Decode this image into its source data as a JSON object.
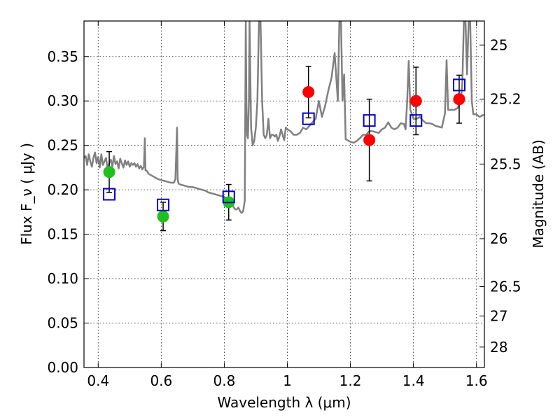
{
  "chart_data": {
    "type": "scatter",
    "xlabel": "Wavelength  λ (μm)",
    "ylabel": "Flux  F_ν  ( μJy )",
    "y2label": "Magnitude (AB)",
    "xlim": [
      0.355,
      1.625
    ],
    "ylim": [
      0.0,
      0.39
    ],
    "grid": true,
    "x_ticks": [
      0.4,
      0.6,
      0.8,
      1.0,
      1.2,
      1.4,
      1.6
    ],
    "x_tick_labels": [
      "0.4",
      "0.6",
      "0.8",
      "1",
      "1.2",
      "1.4",
      "1.6"
    ],
    "y_ticks": [
      0.0,
      0.05,
      0.1,
      0.15,
      0.2,
      0.25,
      0.3,
      0.35
    ],
    "y_tick_labels": [
      "0.00",
      "0.05",
      "0.10",
      "0.15",
      "0.20",
      "0.25",
      "0.30",
      "0.35"
    ],
    "y2_ticks": [
      {
        "label": "25",
        "flux": 0.363
      },
      {
        "label": "25.2",
        "flux": 0.302
      },
      {
        "label": "25.5",
        "flux": 0.229
      },
      {
        "label": "26",
        "flux": 0.145
      },
      {
        "label": "26.5",
        "flux": 0.091
      },
      {
        "label": "27",
        "flux": 0.058
      },
      {
        "label": "28",
        "flux": 0.023
      }
    ],
    "series": [
      {
        "marker": "circle",
        "color": "#1fbf1f",
        "points": [
          {
            "x": 0.435,
            "y": 0.22,
            "err": 0.023
          },
          {
            "x": 0.606,
            "y": 0.17,
            "err": 0.016
          },
          {
            "x": 0.814,
            "y": 0.186,
            "err": 0.02
          }
        ]
      },
      {
        "marker": "circle",
        "color": "#ff0000",
        "points": [
          {
            "x": 1.067,
            "y": 0.31,
            "err": 0.029
          },
          {
            "x": 1.26,
            "y": 0.256,
            "err": 0.046
          },
          {
            "x": 1.408,
            "y": 0.3,
            "err": 0.038
          },
          {
            "x": 1.545,
            "y": 0.302,
            "err": 0.027
          }
        ]
      },
      {
        "marker": "open-square",
        "color": "#0000cc",
        "points": [
          {
            "x": 0.435,
            "y": 0.195
          },
          {
            "x": 0.606,
            "y": 0.183
          },
          {
            "x": 0.814,
            "y": 0.192
          },
          {
            "x": 1.067,
            "y": 0.28
          },
          {
            "x": 1.26,
            "y": 0.278
          },
          {
            "x": 1.408,
            "y": 0.278
          },
          {
            "x": 1.545,
            "y": 0.318
          }
        ]
      },
      {
        "marker": "line",
        "color": "#808080",
        "x": [
          0.355,
          0.36,
          0.365,
          0.37,
          0.375,
          0.38,
          0.385,
          0.39,
          0.395,
          0.4,
          0.405,
          0.41,
          0.415,
          0.42,
          0.425,
          0.43,
          0.435,
          0.44,
          0.445,
          0.45,
          0.455,
          0.46,
          0.465,
          0.47,
          0.475,
          0.48,
          0.485,
          0.49,
          0.495,
          0.5,
          0.505,
          0.51,
          0.515,
          0.52,
          0.525,
          0.53,
          0.535,
          0.54,
          0.545,
          0.548,
          0.55,
          0.552,
          0.555,
          0.56,
          0.57,
          0.58,
          0.59,
          0.6,
          0.61,
          0.62,
          0.63,
          0.64,
          0.645,
          0.65,
          0.652,
          0.655,
          0.66,
          0.67,
          0.68,
          0.69,
          0.7,
          0.71,
          0.72,
          0.73,
          0.74,
          0.75,
          0.76,
          0.77,
          0.78,
          0.79,
          0.8,
          0.81,
          0.82,
          0.825,
          0.83,
          0.835,
          0.84,
          0.845,
          0.85,
          0.855,
          0.86,
          0.865,
          0.868,
          0.87,
          0.872,
          0.875,
          0.878,
          0.88,
          0.885,
          0.89,
          0.895,
          0.9,
          0.905,
          0.91,
          0.915,
          0.92,
          0.925,
          0.93,
          0.935,
          0.94,
          0.945,
          0.95,
          0.955,
          0.96,
          0.965,
          0.97,
          0.975,
          0.98,
          0.985,
          0.99,
          0.995,
          1.0,
          1.01,
          1.02,
          1.03,
          1.04,
          1.05,
          1.06,
          1.07,
          1.08,
          1.09,
          1.1,
          1.11,
          1.12,
          1.13,
          1.14,
          1.15,
          1.16,
          1.165,
          1.17,
          1.175,
          1.18,
          1.185,
          1.19,
          1.195,
          1.2,
          1.21,
          1.22,
          1.23,
          1.24,
          1.25,
          1.26,
          1.27,
          1.28,
          1.29,
          1.3,
          1.31,
          1.32,
          1.33,
          1.34,
          1.35,
          1.36,
          1.37,
          1.375,
          1.38,
          1.385,
          1.39,
          1.4,
          1.41,
          1.42,
          1.43,
          1.44,
          1.45,
          1.46,
          1.47,
          1.48,
          1.49,
          1.5,
          1.505,
          1.51,
          1.52,
          1.53,
          1.54,
          1.55,
          1.555,
          1.56,
          1.565,
          1.57,
          1.575,
          1.58,
          1.585,
          1.59,
          1.6,
          1.61,
          1.62,
          1.625
        ],
        "y": [
          0.236,
          0.238,
          0.228,
          0.24,
          0.232,
          0.226,
          0.236,
          0.242,
          0.23,
          0.237,
          0.225,
          0.24,
          0.228,
          0.232,
          0.236,
          0.222,
          0.23,
          0.234,
          0.226,
          0.238,
          0.229,
          0.232,
          0.224,
          0.235,
          0.23,
          0.225,
          0.233,
          0.228,
          0.232,
          0.226,
          0.23,
          0.228,
          0.23,
          0.226,
          0.229,
          0.224,
          0.227,
          0.223,
          0.226,
          0.258,
          0.222,
          0.222,
          0.221,
          0.218,
          0.216,
          0.214,
          0.212,
          0.211,
          0.21,
          0.209,
          0.208,
          0.208,
          0.212,
          0.27,
          0.212,
          0.207,
          0.206,
          0.205,
          0.204,
          0.203,
          0.203,
          0.202,
          0.201,
          0.2,
          0.199,
          0.197,
          0.196,
          0.195,
          0.194,
          0.193,
          0.192,
          0.19,
          0.188,
          0.184,
          0.18,
          0.178,
          0.178,
          0.18,
          0.176,
          0.174,
          0.176,
          0.188,
          0.39,
          0.3,
          0.262,
          0.258,
          0.3,
          0.39,
          0.27,
          0.25,
          0.255,
          0.27,
          0.3,
          0.39,
          0.39,
          0.3,
          0.262,
          0.258,
          0.262,
          0.28,
          0.258,
          0.262,
          0.262,
          0.26,
          0.262,
          0.255,
          0.26,
          0.268,
          0.262,
          0.256,
          0.27,
          0.268,
          0.266,
          0.262,
          0.262,
          0.264,
          0.27,
          0.268,
          0.272,
          0.276,
          0.28,
          0.3,
          0.282,
          0.295,
          0.312,
          0.326,
          0.354,
          0.3,
          0.39,
          0.39,
          0.3,
          0.33,
          0.257,
          0.256,
          0.255,
          0.254,
          0.253,
          0.255,
          0.258,
          0.262,
          0.262,
          0.266,
          0.266,
          0.265,
          0.264,
          0.268,
          0.27,
          0.276,
          0.27,
          0.268,
          0.27,
          0.275,
          0.274,
          0.268,
          0.3,
          0.345,
          0.29,
          0.28,
          0.28,
          0.282,
          0.278,
          0.275,
          0.275,
          0.274,
          0.272,
          0.271,
          0.27,
          0.286,
          0.346,
          0.29,
          0.29,
          0.29,
          0.292,
          0.3,
          0.32,
          0.39,
          0.39,
          0.33,
          0.39,
          0.39,
          0.3,
          0.285,
          0.285,
          0.282,
          0.284,
          0.284
        ]
      }
    ]
  }
}
